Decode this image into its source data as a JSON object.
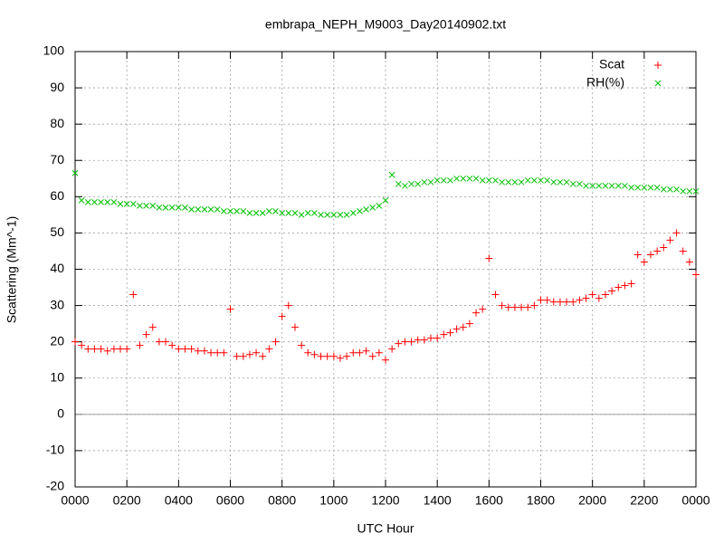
{
  "chart_data": {
    "type": "scatter",
    "title": "embrapa_NEPH_M9003_Day20140902.txt",
    "xlabel": "UTC Hour",
    "ylabel": "Scattering (Mm^-1)",
    "x": [
      0,
      0.25,
      0.5,
      0.75,
      1,
      1.25,
      1.5,
      1.75,
      2,
      2.25,
      2.5,
      2.75,
      3,
      3.25,
      3.5,
      3.75,
      4,
      4.25,
      4.5,
      4.75,
      5,
      5.25,
      5.5,
      5.75,
      6,
      6.25,
      6.5,
      6.75,
      7,
      7.25,
      7.5,
      7.75,
      8,
      8.25,
      8.5,
      8.75,
      9,
      9.25,
      9.5,
      9.75,
      10,
      10.25,
      10.5,
      10.75,
      11,
      11.25,
      11.5,
      11.75,
      12,
      12.25,
      12.5,
      12.75,
      13,
      13.25,
      13.5,
      13.75,
      14,
      14.25,
      14.5,
      14.75,
      15,
      15.25,
      15.5,
      15.75,
      16,
      16.25,
      16.5,
      16.75,
      17,
      17.25,
      17.5,
      17.75,
      18,
      18.25,
      18.5,
      18.75,
      19,
      19.25,
      19.5,
      19.75,
      20,
      20.25,
      20.5,
      20.75,
      21,
      21.25,
      21.5,
      21.75,
      22,
      22.25,
      22.5,
      22.75,
      23,
      23.25,
      23.5,
      23.75,
      24
    ],
    "series": [
      {
        "name": "Scat",
        "color": "#ff0000",
        "marker": "plus",
        "values": [
          20,
          19,
          18,
          18,
          18,
          17.5,
          18,
          18,
          18,
          33,
          19,
          22,
          24,
          20,
          20,
          19,
          18,
          18,
          18,
          17.5,
          17.5,
          17,
          17,
          17,
          29,
          16,
          16,
          16.5,
          17,
          16,
          18,
          20,
          27,
          30,
          24,
          19,
          17,
          16.5,
          16,
          16,
          16,
          15.5,
          16,
          17,
          17,
          17.5,
          16,
          17,
          15,
          18,
          19.5,
          20,
          20,
          20.5,
          20.5,
          21,
          21,
          22,
          22.5,
          23.5,
          24,
          25,
          28,
          29,
          43,
          33,
          30,
          29.5,
          29.5,
          29.5,
          29.5,
          30,
          31.5,
          31.5,
          31,
          31,
          31,
          31,
          31.5,
          32,
          33,
          32,
          33,
          34,
          35,
          35.5,
          36,
          44,
          42,
          44,
          45,
          46,
          48,
          50,
          45,
          42,
          38.5
        ]
      },
      {
        "name": "RH(%)",
        "color": "#00c000",
        "marker": "cross",
        "values": [
          66.5,
          59,
          58.5,
          58.5,
          58.5,
          58.5,
          58.5,
          58,
          58,
          58,
          57.5,
          57.5,
          57.5,
          57,
          57,
          57,
          57,
          57,
          56.5,
          56.5,
          56.5,
          56.5,
          56.5,
          56,
          56,
          56,
          56,
          55.5,
          55.5,
          55.5,
          56,
          56,
          55.5,
          55.5,
          55.5,
          55,
          55.5,
          55.5,
          55,
          55,
          55,
          55,
          55,
          55.5,
          56,
          56.5,
          57,
          57.5,
          59,
          66,
          63.5,
          63,
          63.5,
          63.5,
          64,
          64,
          64.5,
          64.5,
          64.5,
          65,
          65,
          65,
          65,
          64.5,
          64.5,
          64.5,
          64,
          64,
          64,
          64,
          64.5,
          64.5,
          64.5,
          64.5,
          64,
          64,
          64,
          63.5,
          63.5,
          63,
          63,
          63,
          63,
          63,
          63,
          63,
          62.5,
          62.5,
          62.5,
          62.5,
          62.5,
          62,
          62,
          62,
          61.5,
          61.5,
          61.5
        ]
      }
    ],
    "xlim": [
      0,
      24
    ],
    "xticks": [
      {
        "value": 0,
        "label": "0000"
      },
      {
        "value": 2,
        "label": "0200"
      },
      {
        "value": 4,
        "label": "0400"
      },
      {
        "value": 6,
        "label": "0600"
      },
      {
        "value": 8,
        "label": "0800"
      },
      {
        "value": 10,
        "label": "1000"
      },
      {
        "value": 12,
        "label": "1200"
      },
      {
        "value": 14,
        "label": "1400"
      },
      {
        "value": 16,
        "label": "1600"
      },
      {
        "value": 18,
        "label": "1800"
      },
      {
        "value": 20,
        "label": "2000"
      },
      {
        "value": 22,
        "label": "2200"
      },
      {
        "value": 24,
        "label": "0000"
      }
    ],
    "ylim": [
      -20,
      100
    ],
    "yticks": [
      -20,
      -10,
      0,
      10,
      20,
      30,
      40,
      50,
      60,
      70,
      80,
      90,
      100
    ],
    "grid": true,
    "legend": "top-right"
  }
}
